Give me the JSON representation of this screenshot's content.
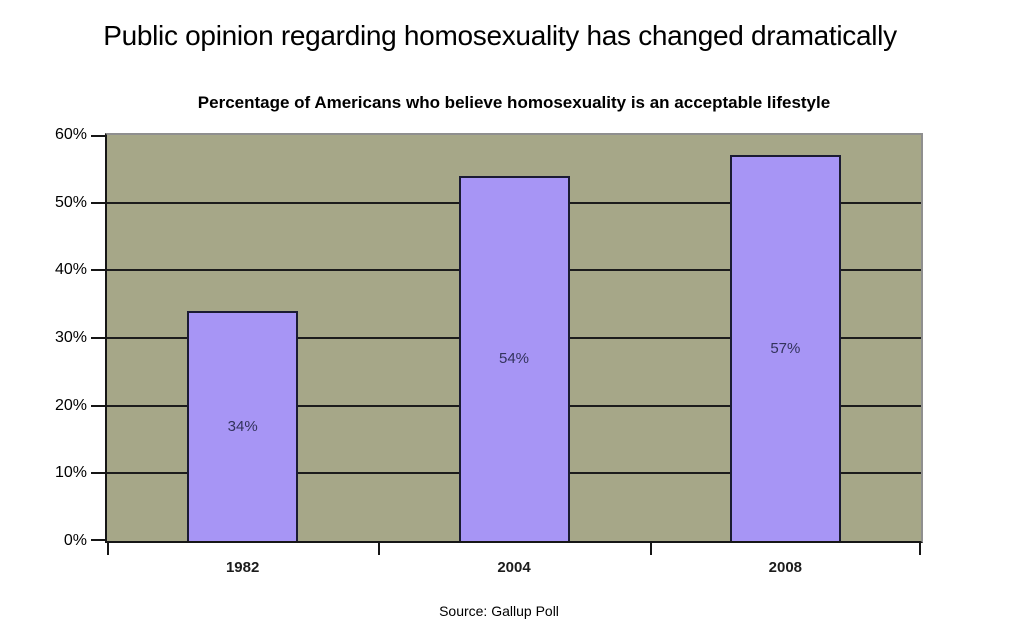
{
  "page_title": "Public opinion regarding homosexuality has changed dramatically",
  "chart_data": {
    "type": "bar",
    "title": "Percentage of Americans who believe homosexuality is an acceptable lifestyle",
    "categories": [
      "1982",
      "2004",
      "2008"
    ],
    "values": [
      34,
      54,
      57
    ],
    "bar_labels": [
      "34%",
      "54%",
      "57%"
    ],
    "y_ticks": [
      "0%",
      "10%",
      "20%",
      "30%",
      "40%",
      "50%",
      "60%"
    ],
    "y_tick_values": [
      0,
      10,
      20,
      30,
      40,
      50,
      60
    ],
    "ylim": [
      0,
      60
    ],
    "grid": true,
    "legend": "none",
    "source": "Source: Gallup Poll",
    "colors": {
      "plot_background": "#A6A788",
      "bar_fill": "#A795F5",
      "bar_border": "#1B1B33",
      "gridline": "#1C1C1C",
      "axis": "#161616",
      "bar_label_text": "#33335C"
    }
  }
}
